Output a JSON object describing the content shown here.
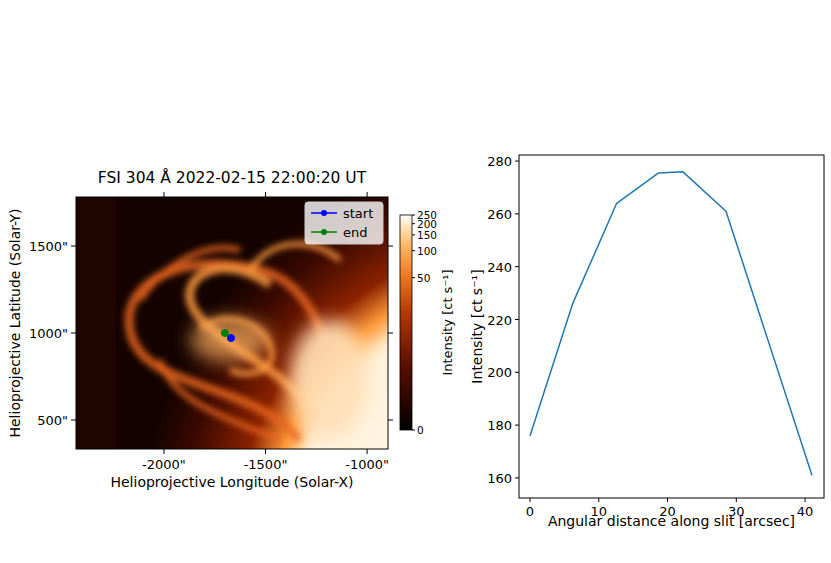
{
  "chart_data": [
    {
      "type": "image",
      "title": "FSI 304 Å 2022-02-15 22:00:20 UT",
      "xlabel": "Helioprojective Longitude (Solar-X)",
      "ylabel": "Helioprojective Latitude (Solar-Y)",
      "xlim": [
        -2433,
        -897
      ],
      "ylim": [
        333,
        1782
      ],
      "xticks": [
        {
          "value": -2000,
          "label": "-2000\""
        },
        {
          "value": -1500,
          "label": "-1500\""
        },
        {
          "value": -1000,
          "label": "-1000\""
        }
      ],
      "yticks": [
        {
          "value": 500,
          "label": "500\""
        },
        {
          "value": 1000,
          "label": "1000\""
        },
        {
          "value": 1500,
          "label": "1500\""
        }
      ],
      "colorbar": {
        "label": "Intensity [ct s⁻¹]",
        "range": [
          0,
          250
        ],
        "ticks": [
          0,
          50,
          100,
          150,
          200,
          250
        ]
      },
      "series": [
        {
          "name": "start",
          "color": "#0000ff",
          "marker": "circle",
          "x": [
            -1670
          ],
          "y": [
            971
          ]
        },
        {
          "name": "end",
          "color": "#008000",
          "marker": "circle",
          "x": [
            -1700
          ],
          "y": [
            1000
          ]
        }
      ],
      "legend": "upper right"
    },
    {
      "type": "line",
      "xlabel": "Angular distance along slit [arcsec]",
      "ylabel": "Intensity [ct s⁻¹]",
      "x": [
        0,
        6.2,
        12.6,
        18.7,
        22.2,
        28.5,
        41
      ],
      "series": [
        {
          "color": "#1f77b4",
          "values": [
            176,
            226,
            264,
            275.5,
            276,
            261,
            161
          ]
        }
      ],
      "xlim": [
        -1.6,
        42.75
      ],
      "ylim": [
        152.4,
        282.3
      ],
      "xticks": [
        0,
        10,
        20,
        30,
        40
      ],
      "yticks": [
        160,
        180,
        200,
        220,
        240,
        260,
        280
      ]
    }
  ]
}
